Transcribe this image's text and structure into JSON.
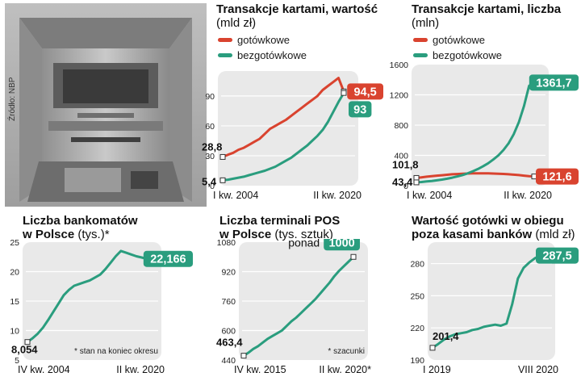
{
  "source": "Źródło: NBP",
  "colors": {
    "red": "#d9432f",
    "green": "#2a9d7e",
    "plot_bg": "#e9e9e9",
    "grid": "#ffffff"
  },
  "chart_data": [
    {
      "id": "card-value",
      "type": "line",
      "title": "Transakcje kartami, wartość",
      "unit": "(mld zł)",
      "x_start_label": "I kw. 2004",
      "x_end_label": "II kw. 2020",
      "ylim": [
        0,
        115
      ],
      "yticks": [
        "0",
        "30",
        "60",
        "90"
      ],
      "series": [
        {
          "name": "gotówkowe",
          "color": "red",
          "start_label": "28,8",
          "end_label": "94,5",
          "values": [
            28.8,
            31,
            33,
            36,
            38,
            41,
            44,
            47,
            52,
            57,
            60,
            63,
            66,
            70,
            74,
            78,
            82,
            86,
            90,
            96,
            100,
            104,
            108,
            94.5
          ]
        },
        {
          "name": "bezgotówkowe",
          "color": "green",
          "start_label": "5,4",
          "end_label": "93",
          "values": [
            5.4,
            6,
            7,
            8,
            9,
            10.5,
            12,
            13.5,
            15,
            17,
            19,
            22,
            25,
            28,
            32,
            36,
            40,
            45,
            50,
            56,
            64,
            74,
            84,
            93
          ]
        }
      ]
    },
    {
      "id": "card-count",
      "type": "line",
      "title": "Transakcje kartami, liczba",
      "unit": "(mln)",
      "x_start_label": "I kw. 2004",
      "x_end_label": "II kw. 2020",
      "ylim": [
        0,
        1600
      ],
      "yticks": [
        "0",
        "400",
        "800",
        "1200",
        "1600"
      ],
      "series": [
        {
          "name": "gotówkowe",
          "color": "red",
          "start_label": "101,8",
          "end_label": "121,6",
          "values": [
            101.8,
            110,
            118,
            125,
            132,
            138,
            144,
            150,
            154,
            158,
            160,
            162,
            163,
            163,
            162,
            160,
            158,
            155,
            150,
            145,
            140,
            132,
            126,
            121.6
          ]
        },
        {
          "name": "bezgotówkowe",
          "color": "green",
          "start_label": "43,4",
          "end_label": "1361,7",
          "values": [
            43.4,
            48,
            55,
            62,
            70,
            80,
            92,
            106,
            122,
            140,
            162,
            190,
            220,
            255,
            295,
            345,
            400,
            470,
            560,
            680,
            840,
            1050,
            1320,
            1361.7
          ]
        }
      ]
    },
    {
      "id": "atms",
      "type": "line",
      "title": "Liczba bankomatów",
      "title2": "w Polsce",
      "unit": "(tys.)*",
      "x_start_label": "IV kw. 2004",
      "x_end_label": "II kw. 2020",
      "note": "* stan na koniec okresu",
      "ylim": [
        5,
        25
      ],
      "yticks": [
        "5",
        "10",
        "15",
        "20",
        "25"
      ],
      "series": [
        {
          "name": "bankomaty",
          "color": "green",
          "start_label": "8,054",
          "end_label": "22,166",
          "values": [
            8.054,
            8.7,
            9.5,
            10.5,
            11.8,
            13.2,
            14.6,
            16,
            16.9,
            17.6,
            17.9,
            18.2,
            18.5,
            19,
            19.5,
            20.4,
            21.5,
            22.6,
            23.5,
            23.2,
            22.9,
            22.6,
            22.4,
            22.166
          ]
        }
      ]
    },
    {
      "id": "pos",
      "type": "line",
      "title": "Liczba terminali POS",
      "title2": "w Polsce",
      "unit": "(tys. sztuk)",
      "x_start_label": "IV kw. 2015",
      "x_end_label": "II kw. 2020*",
      "note": "* szacunki",
      "prefix_end": "ponad",
      "ylim": [
        440,
        1080
      ],
      "yticks": [
        "440",
        "600",
        "760",
        "920",
        "1080"
      ],
      "series": [
        {
          "name": "terminale POS",
          "color": "green",
          "start_label": "463,4",
          "end_label": "1000",
          "values": [
            463.4,
            480,
            500,
            515,
            535,
            555,
            570,
            585,
            600,
            625,
            650,
            670,
            695,
            720,
            745,
            770,
            800,
            830,
            860,
            895,
            925,
            950,
            975,
            1000
          ]
        }
      ]
    },
    {
      "id": "cash",
      "type": "line",
      "title": "Wartość gotówki w obiegu",
      "title2": "poza kasami banków",
      "unit": "(mld zł)",
      "x_start_label": "I 2019",
      "x_end_label": "VIII 2020",
      "ylim": [
        190,
        300
      ],
      "yticks": [
        "190",
        "220",
        "250",
        "280"
      ],
      "series": [
        {
          "name": "gotówka w obiegu",
          "color": "green",
          "start_label": "201,4",
          "end_label": "287,5",
          "values": [
            201.4,
            205,
            209,
            212,
            214,
            215,
            216,
            218,
            219,
            221,
            222,
            223,
            222,
            224,
            242,
            266,
            276,
            281,
            285,
            287.5
          ]
        }
      ]
    }
  ]
}
